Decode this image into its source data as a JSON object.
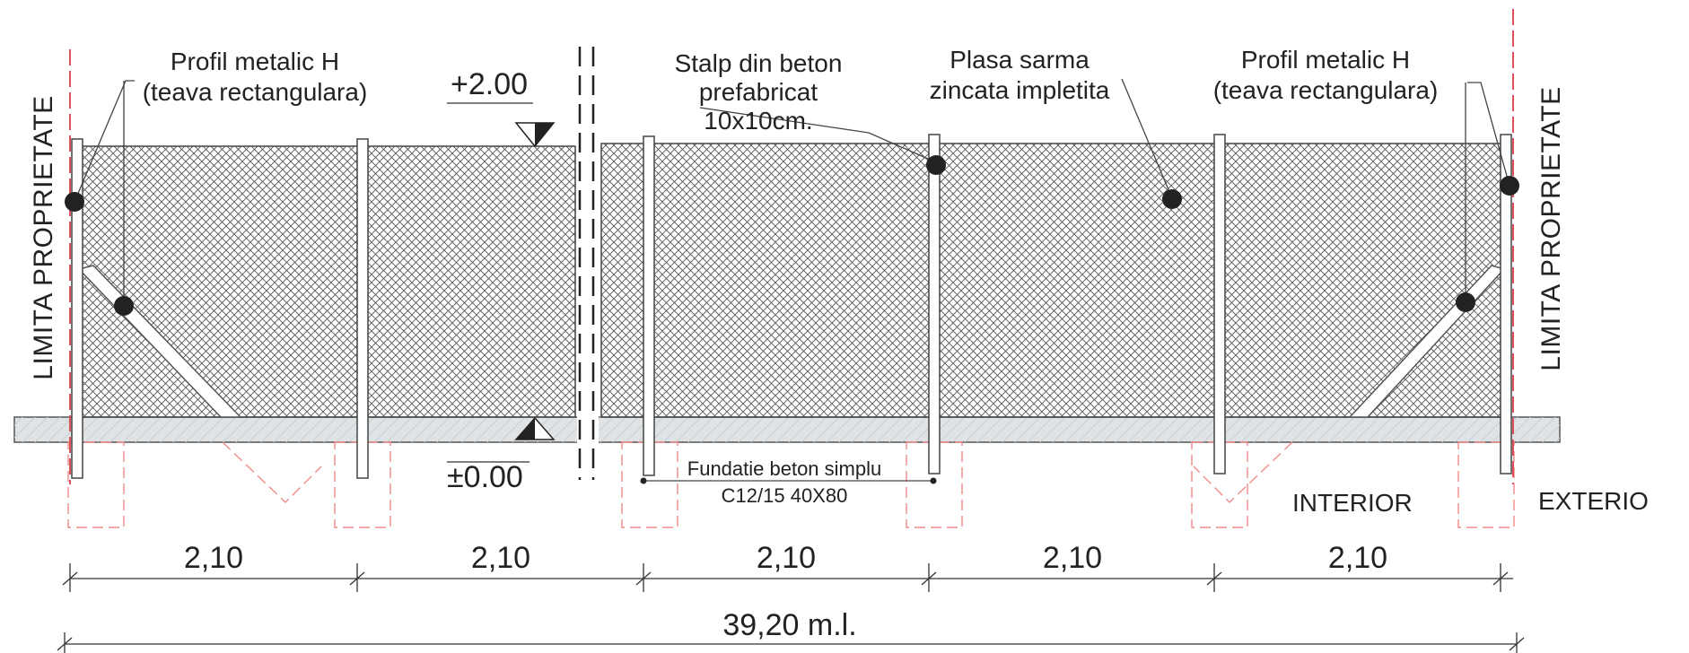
{
  "labels": {
    "boundary_left": "LIMITA PROPRIETATE",
    "boundary_right": "LIMITA PROPRIETATE",
    "profile_left_line1": "Profil metalic H",
    "profile_left_line2": "(teava rectangulara)",
    "profile_right_line1": "Profil metalic H",
    "profile_right_line2": "(teava rectangulara)",
    "post_line1": "Stalp din beton",
    "post_line2": "prefabricat",
    "post_line3": "10x10cm.",
    "mesh_line1": "Plasa sarma",
    "mesh_line2": "zincata impletita",
    "level_top": "+2.00",
    "level_zero": "±0.00",
    "foundation_line1": "Fundatie beton simplu",
    "foundation_line2": "C12/15   40X80",
    "side_interior": "INTERIOR",
    "side_exterior": "EXTERIO"
  },
  "dimensions": {
    "spans": [
      "2,10",
      "2,10",
      "2,10",
      "2,10",
      "2,10"
    ],
    "total": "39,20 m.l."
  },
  "colors": {
    "line": "#333333",
    "hatch": "#555555",
    "boundary": "#e0505a",
    "foundation_dash": "#f08a8a",
    "ground_fill": "#dfe3e6"
  }
}
